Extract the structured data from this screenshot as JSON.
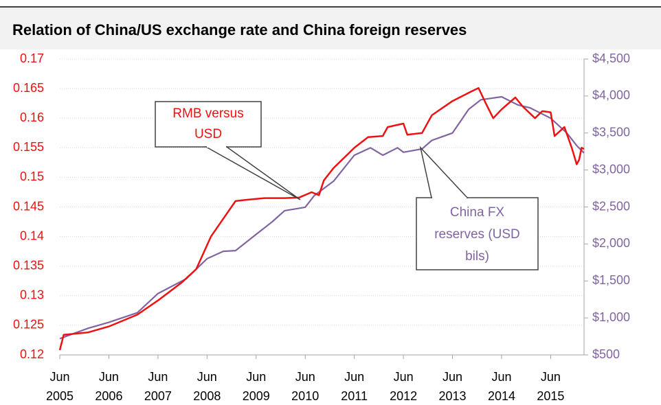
{
  "chart_data": {
    "type": "line",
    "title": "Relation of China/US exchange rate and China foreign reserves",
    "xlim": [
      2005.42,
      2016.1
    ],
    "xticks": [
      {
        "value": 2005.42,
        "label": "Jun 2005"
      },
      {
        "value": 2006.42,
        "label": "Jun 2006"
      },
      {
        "value": 2007.42,
        "label": "Jun 2007"
      },
      {
        "value": 2008.42,
        "label": "Jun 2008"
      },
      {
        "value": 2009.42,
        "label": "Jun 2009"
      },
      {
        "value": 2010.42,
        "label": "Jun 2010"
      },
      {
        "value": 2011.42,
        "label": "Jun 2011"
      },
      {
        "value": 2012.42,
        "label": "Jun 2012"
      },
      {
        "value": 2013.42,
        "label": "Jun 2013"
      },
      {
        "value": 2014.42,
        "label": "Jun 2014"
      },
      {
        "value": 2015.42,
        "label": "Jun 2015"
      }
    ],
    "ylim": [
      0.12,
      0.17
    ],
    "yticks": [
      0.12,
      0.125,
      0.13,
      0.135,
      0.14,
      0.145,
      0.15,
      0.155,
      0.16,
      0.165,
      0.17
    ],
    "y2lim": [
      500,
      4500
    ],
    "y2ticks": [
      {
        "value": 500,
        "label": "$500"
      },
      {
        "value": 1000,
        "label": "$1,000"
      },
      {
        "value": 1500,
        "label": "$1,500"
      },
      {
        "value": 2000,
        "label": "$2,000"
      },
      {
        "value": 2500,
        "label": "$2,500"
      },
      {
        "value": 3000,
        "label": "$3,000"
      },
      {
        "value": 3500,
        "label": "$3,500"
      },
      {
        "value": 4000,
        "label": "$4,000"
      },
      {
        "value": 4500,
        "label": "$4,500"
      }
    ],
    "grid": true,
    "series": [
      {
        "name": "RMB versus USD",
        "color": "#ee1111",
        "x": [
          2005.42,
          2005.5,
          2006.0,
          2006.42,
          2007.0,
          2007.42,
          2007.9,
          2008.2,
          2008.5,
          2008.75,
          2009.0,
          2009.2,
          2009.6,
          2010.0,
          2010.3,
          2010.55,
          2010.7,
          2010.8,
          2011.0,
          2011.42,
          2011.7,
          2012.0,
          2012.1,
          2012.42,
          2012.5,
          2012.8,
          2013.0,
          2013.42,
          2013.8,
          2013.95,
          2014.1,
          2014.25,
          2014.42,
          2014.7,
          2014.85,
          2015.1,
          2015.25,
          2015.42,
          2015.5,
          2015.7,
          2015.85,
          2015.95,
          2016.0,
          2016.05,
          2016.1
        ],
        "values": [
          0.1208,
          0.1234,
          0.1238,
          0.1248,
          0.1268,
          0.1292,
          0.1322,
          0.1345,
          0.14,
          0.143,
          0.146,
          0.1462,
          0.1465,
          0.1465,
          0.1466,
          0.1475,
          0.147,
          0.1495,
          0.1516,
          0.155,
          0.1568,
          0.157,
          0.1585,
          0.1591,
          0.1572,
          0.1575,
          0.1605,
          0.1629,
          0.1645,
          0.1651,
          0.1625,
          0.16,
          0.1615,
          0.1635,
          0.162,
          0.16,
          0.1612,
          0.161,
          0.157,
          0.1585,
          0.155,
          0.1522,
          0.153,
          0.155,
          0.1548
        ]
      },
      {
        "name": "China FX reserves (USD bils)",
        "color": "#8064a2",
        "axis": "y2",
        "x": [
          2005.42,
          2006.0,
          2006.42,
          2007.0,
          2007.42,
          2008.0,
          2008.42,
          2008.75,
          2009.0,
          2009.42,
          2009.75,
          2010.0,
          2010.42,
          2010.6,
          2011.0,
          2011.42,
          2011.75,
          2012.0,
          2012.3,
          2012.42,
          2012.8,
          2013.0,
          2013.42,
          2013.75,
          2014.0,
          2014.42,
          2014.75,
          2015.0,
          2015.42,
          2015.75,
          2015.95,
          2016.1
        ],
        "values": [
          720,
          860,
          940,
          1070,
          1330,
          1530,
          1800,
          1900,
          1910,
          2130,
          2300,
          2450,
          2496,
          2650,
          2850,
          3200,
          3300,
          3200,
          3300,
          3240,
          3285,
          3400,
          3500,
          3820,
          3950,
          3990,
          3880,
          3840,
          3700,
          3500,
          3330,
          3230
        ]
      }
    ],
    "annotations": [
      {
        "lines": [
          "RMB versus",
          "USD"
        ]
      },
      {
        "lines": [
          "China FX",
          "reserves (USD",
          "bils)"
        ]
      }
    ]
  }
}
